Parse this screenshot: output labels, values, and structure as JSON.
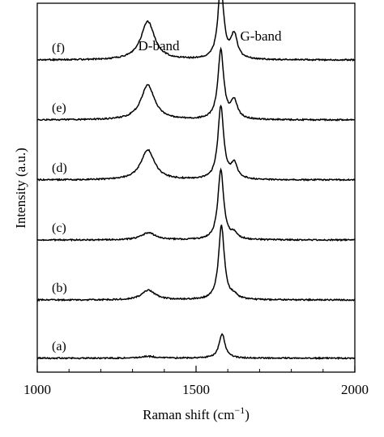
{
  "chart_data": {
    "type": "line",
    "xlabel": "Raman shift (cm−1)",
    "xlabel_main": "Raman shift (cm",
    "xlabel_sup": "−1",
    "xlabel_close": ")",
    "ylabel": "Intensity (a.u.)",
    "xlim": [
      1000,
      2000
    ],
    "x_ticks": [
      1000,
      1500,
      2000
    ],
    "x_tick_labels": [
      "1000",
      "1500",
      "2000"
    ],
    "y_ticks_shown": false,
    "grid": false,
    "legend": "none",
    "annotations": [
      {
        "text": "D-band",
        "x": 1350
      },
      {
        "text": "G-band",
        "x": 1580
      }
    ],
    "series": [
      {
        "name": "(a)",
        "baseline": 0.03,
        "d_peak": {
          "x": 1350,
          "height": 0.03
        },
        "g_peak": {
          "x": 1582,
          "height": 0.41
        },
        "shoulder": {
          "x": 1620,
          "height": 0.0
        }
      },
      {
        "name": "(b)",
        "baseline": 1.0,
        "d_peak": {
          "x": 1350,
          "height": 0.16
        },
        "g_peak": {
          "x": 1580,
          "height": 1.24
        },
        "shoulder": {
          "x": 1620,
          "height": 0.06
        }
      },
      {
        "name": "(c)",
        "baseline": 2.0,
        "d_peak": {
          "x": 1350,
          "height": 0.12
        },
        "g_peak": {
          "x": 1578,
          "height": 1.17
        },
        "shoulder": {
          "x": 1620,
          "height": 0.09
        }
      },
      {
        "name": "(d)",
        "baseline": 3.0,
        "d_peak": {
          "x": 1348,
          "height": 0.5
        },
        "g_peak": {
          "x": 1578,
          "height": 1.22
        },
        "shoulder": {
          "x": 1620,
          "height": 0.25
        }
      },
      {
        "name": "(e)",
        "baseline": 4.0,
        "d_peak": {
          "x": 1348,
          "height": 0.58
        },
        "g_peak": {
          "x": 1578,
          "height": 1.15
        },
        "shoulder": {
          "x": 1620,
          "height": 0.3
        }
      },
      {
        "name": "(f)",
        "baseline": 5.0,
        "d_peak": {
          "x": 1348,
          "height": 0.64
        },
        "g_peak": {
          "x": 1578,
          "height": 1.22
        },
        "shoulder": {
          "x": 1620,
          "height": 0.4
        }
      }
    ]
  }
}
